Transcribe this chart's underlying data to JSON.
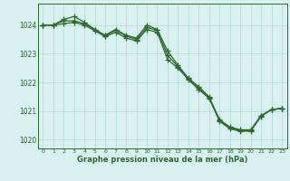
{
  "line1": {
    "x": [
      0,
      1,
      2,
      3,
      4,
      5,
      6,
      7,
      8,
      9,
      10,
      11,
      12,
      13,
      14,
      15,
      16,
      17,
      18,
      19,
      20,
      21,
      22,
      23
    ],
    "y": [
      1024.0,
      1024.0,
      1024.2,
      1024.3,
      1024.1,
      1023.85,
      1023.65,
      1023.85,
      1023.65,
      1023.55,
      1024.0,
      1023.85,
      1023.1,
      1022.6,
      1022.15,
      1021.85,
      1021.5,
      1020.7,
      1020.45,
      1020.35,
      1020.35,
      1020.85,
      1021.05,
      1021.1
    ]
  },
  "line2": {
    "x": [
      0,
      1,
      2,
      3,
      4,
      5,
      6,
      7,
      8,
      9,
      10,
      11,
      12,
      13,
      14,
      15,
      16,
      17,
      18,
      19,
      20,
      21,
      22,
      23
    ],
    "y": [
      1024.0,
      1024.0,
      1024.05,
      1024.1,
      1024.0,
      1023.8,
      1023.6,
      1023.75,
      1023.55,
      1023.45,
      1023.85,
      1023.75,
      1022.8,
      1022.5,
      1022.1,
      1021.75,
      1021.45,
      1020.65,
      1020.38,
      1020.3,
      1020.3,
      1020.82,
      1021.05,
      1021.1
    ]
  },
  "line3": {
    "x": [
      0,
      1,
      2,
      3,
      4,
      5,
      6,
      7,
      8,
      9,
      10,
      11,
      12,
      13,
      14,
      15,
      16,
      17,
      18,
      19,
      20,
      21,
      22,
      23
    ],
    "y": [
      1024.0,
      1024.0,
      1024.15,
      1024.15,
      1024.05,
      1023.85,
      1023.62,
      1023.82,
      1023.62,
      1023.5,
      1023.92,
      1023.82,
      1022.95,
      1022.55,
      1022.12,
      1021.8,
      1021.47,
      1020.68,
      1020.42,
      1020.32,
      1020.32,
      1020.84,
      1021.05,
      1021.1
    ]
  },
  "line_color": "#2d6a2d",
  "bg_color": "#d8f0f0",
  "grid_color": "#b0d8d8",
  "axis_color": "#2d6a2d",
  "text_color": "#2d6a2d",
  "xlabel": "Graphe pression niveau de la mer (hPa)",
  "ylim": [
    1019.7,
    1024.75
  ],
  "yticks": [
    1020,
    1021,
    1022,
    1023,
    1024
  ],
  "xticks": [
    0,
    1,
    2,
    3,
    4,
    5,
    6,
    7,
    8,
    9,
    10,
    11,
    12,
    13,
    14,
    15,
    16,
    17,
    18,
    19,
    20,
    21,
    22,
    23
  ],
  "marker": "+",
  "markersize": 4,
  "linewidth": 0.9
}
